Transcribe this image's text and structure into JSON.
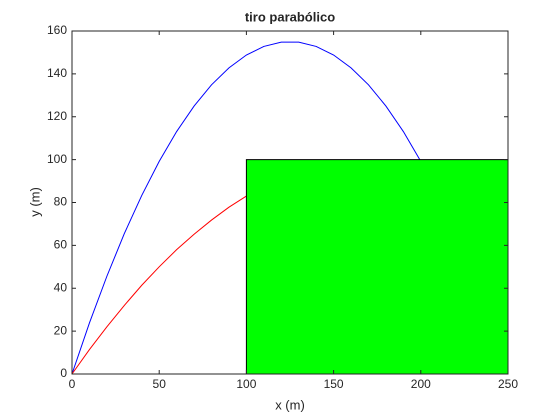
{
  "chart_data": {
    "type": "line",
    "title": "tiro parabólico",
    "x_label": "x (m)",
    "y_label": "y (m)",
    "series": [
      {
        "color": "#0000ff",
        "x": [
          0,
          10,
          20,
          30,
          40,
          50,
          60,
          70,
          80,
          90,
          100,
          110,
          120,
          130,
          140,
          150,
          160,
          170,
          180,
          190,
          200
        ],
        "values": [
          0,
          23.8,
          45.6,
          65.5,
          83.3,
          99.2,
          113.1,
          125.0,
          134.9,
          142.8,
          148.8,
          152.8,
          154.8,
          154.8,
          152.8,
          148.8,
          142.8,
          134.9,
          125.0,
          113.1,
          99.2
        ]
      },
      {
        "color": "#ff0000",
        "x": [
          0,
          10,
          20,
          30,
          40,
          50,
          60,
          70,
          80,
          90,
          100
        ],
        "values": [
          0,
          11.4,
          22.0,
          32.0,
          41.4,
          50.0,
          58.0,
          65.2,
          71.8,
          77.8,
          83.0
        ]
      }
    ],
    "rectangle": {
      "x": [
        100,
        250
      ],
      "y": [
        0,
        100
      ],
      "color": "#00ff00"
    },
    "xlim": [
      0,
      250
    ],
    "xticks": [
      0,
      50,
      100,
      150,
      200,
      250
    ],
    "ylim": [
      0,
      160
    ],
    "yticks": [
      0,
      20,
      40,
      60,
      80,
      100,
      120,
      140,
      160
    ],
    "grid": false
  }
}
